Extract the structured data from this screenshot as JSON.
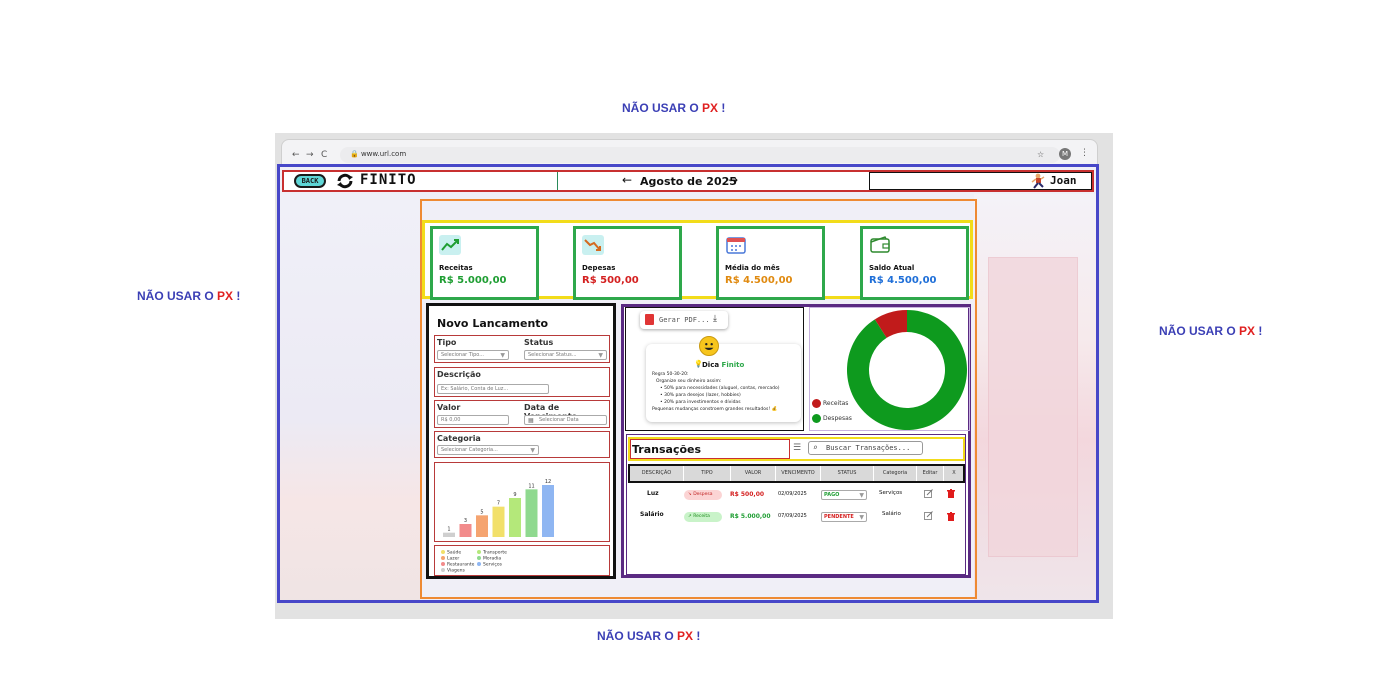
{
  "notes": {
    "prefix": "NÃO USAR O ",
    "px": "PX",
    "suffix": " !"
  },
  "browser": {
    "back": "←",
    "forward": "→",
    "reload": "C",
    "url": "www.url.com",
    "profile_initial": "M"
  },
  "header": {
    "back_label": "BACK",
    "logo": "FINITO",
    "month": "Agosto de 2025",
    "prev": "←",
    "next": "→",
    "user": "Joan"
  },
  "cards": [
    {
      "label": "Receitas",
      "value": "R$ 5.000,00",
      "color": "#1f9e33"
    },
    {
      "label": "Depesas",
      "value": "R$ 500,00",
      "color": "#d42020"
    },
    {
      "label": "Média do mês",
      "value": "R$ 4.500,00",
      "color": "#e08a10"
    },
    {
      "label": "Saldo Atual",
      "value": "R$ 4.500,00",
      "color": "#1f6fd8"
    }
  ],
  "form": {
    "title": "Novo Lancamento",
    "tipo_label": "Tipo",
    "tipo_placeholder": "Selecionar Tipo...",
    "status_label": "Status",
    "status_placeholder": "Selecionar Status...",
    "descricao_label": "Descrição",
    "descricao_placeholder": "Ex: Salário, Conta de Luz...",
    "valor_label": "Valor",
    "valor_placeholder": "R$ 0,00",
    "data_label": "Data de Vencimento",
    "data_placeholder": "Selecionar Data",
    "categoria_label": "Categoria",
    "categoria_placeholder": "Selecionar Categoria..."
  },
  "chart_data": {
    "type": "bar",
    "categories": [
      "",
      "",
      "",
      "",
      "",
      "",
      ""
    ],
    "values": [
      1,
      3,
      5,
      7,
      9,
      11,
      12
    ],
    "colors": [
      "#cfcfcf",
      "#f28b8b",
      "#f5a470",
      "#f2e06a",
      "#b4e87a",
      "#8fd98f",
      "#8fb6f2"
    ],
    "ylim": [
      0,
      12
    ],
    "legend": [
      {
        "name": "Saúde",
        "color": "#f2e06a"
      },
      {
        "name": "Lazer",
        "color": "#f5a470"
      },
      {
        "name": "Restaurante",
        "color": "#f28b8b"
      },
      {
        "name": "Viagens",
        "color": "#cfcfcf"
      },
      {
        "name": "Transporte",
        "color": "#b4e87a"
      },
      {
        "name": "Moradia",
        "color": "#8fd98f"
      },
      {
        "name": "Serviços",
        "color": "#8fb6f2"
      }
    ]
  },
  "pdf": {
    "label": "Gerar PDF..."
  },
  "tip": {
    "title_prefix": "Dica ",
    "title_brand": "Finito",
    "lines": [
      "Regra 50-30-20:",
      "Organize seu dinheiro assim:",
      "• 50% para necessidades (aluguel, contas, mercado)",
      "• 30% para desejos (lazer, hobbies)",
      "• 20% para investimentos e dívidas",
      "Pequenas mudanças constroem grandes resultados! 💰"
    ]
  },
  "donut": {
    "receitas_label": "Receitas",
    "despesas_label": "Despesas",
    "receitas_color": "#c11b1b",
    "despesas_color": "#0e9a1e",
    "receitas_fraction": 0.09
  },
  "transactions": {
    "title": "Transações",
    "search_placeholder": "Buscar Transações...",
    "columns": [
      "DESCRIÇÃO",
      "TIPO",
      "VALOR",
      "VENCIMENTO",
      "STATUS",
      "Categoria",
      "Editar",
      "X"
    ],
    "rows": [
      {
        "descricao": "Luz",
        "tipo": "Despesa",
        "valor": "R$ 500,00",
        "vencimento": "02/09/2025",
        "status": "PAGO",
        "categoria": "Serviços"
      },
      {
        "descricao": "Salário",
        "tipo": "Receita",
        "valor": "R$ 5.000,00",
        "vencimento": "07/09/2025",
        "status": "PENDENTE",
        "categoria": "Salário"
      }
    ]
  },
  "colors": {
    "accent_blue": "#4747c8",
    "income_green": "#1f9e33",
    "expense_red": "#d42020"
  }
}
